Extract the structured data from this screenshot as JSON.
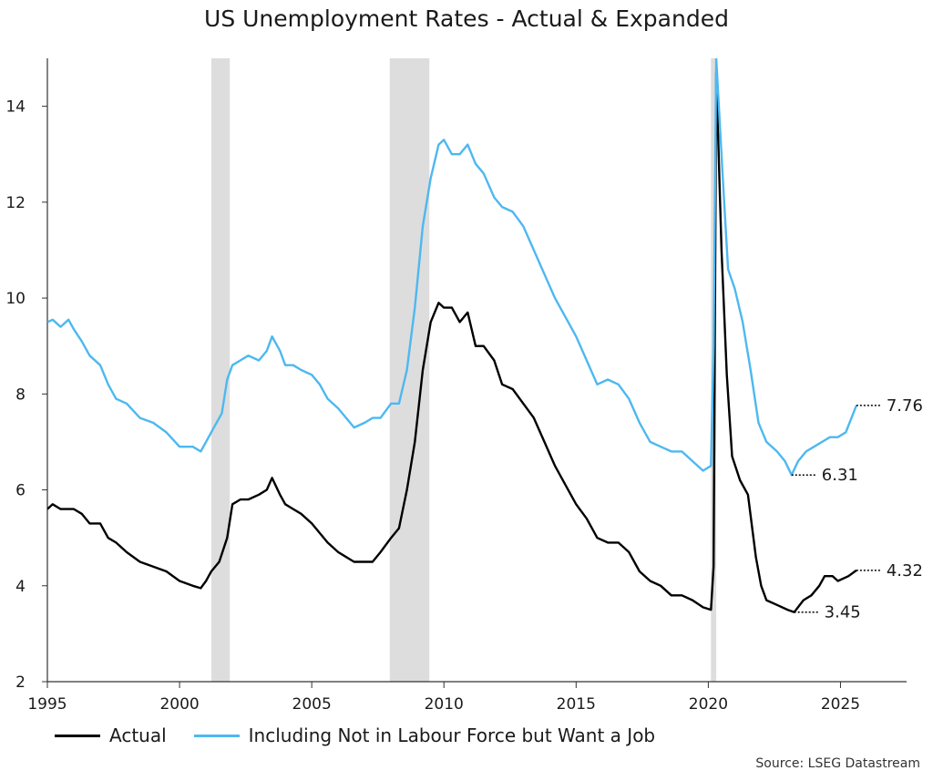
{
  "title": "US Unemployment Rates - Actual & Expanded",
  "source": "Source: LSEG Datastream",
  "colors": {
    "actual": "#000000",
    "expanded": "#4db8f0",
    "recession": "#dddddd",
    "axis": "#333333"
  },
  "chart_data": {
    "type": "line",
    "title": "US Unemployment Rates - Actual & Expanded",
    "xlabel": "",
    "ylabel": "",
    "xlim": [
      1995,
      2027.5
    ],
    "ylim": [
      2,
      15
    ],
    "x_ticks": [
      1995,
      2000,
      2005,
      2010,
      2015,
      2020,
      2025
    ],
    "y_ticks": [
      2,
      4,
      6,
      8,
      10,
      12,
      14
    ],
    "grid": false,
    "legend_position": "bottom-left",
    "recessions": [
      [
        2001.2,
        2001.9
      ],
      [
        2007.95,
        2009.45
      ],
      [
        2020.1,
        2020.3
      ]
    ],
    "series": [
      {
        "name": "Actual",
        "color": "#000000",
        "points": [
          [
            1995.0,
            5.6
          ],
          [
            1995.2,
            5.7
          ],
          [
            1995.5,
            5.6
          ],
          [
            1995.8,
            5.6
          ],
          [
            1996.0,
            5.6
          ],
          [
            1996.3,
            5.5
          ],
          [
            1996.6,
            5.3
          ],
          [
            1997.0,
            5.3
          ],
          [
            1997.3,
            5.0
          ],
          [
            1997.6,
            4.9
          ],
          [
            1998.0,
            4.7
          ],
          [
            1998.5,
            4.5
          ],
          [
            1999.0,
            4.4
          ],
          [
            1999.5,
            4.3
          ],
          [
            2000.0,
            4.1
          ],
          [
            2000.5,
            4.0
          ],
          [
            2000.8,
            3.95
          ],
          [
            2001.0,
            4.1
          ],
          [
            2001.2,
            4.3
          ],
          [
            2001.5,
            4.5
          ],
          [
            2001.8,
            5.0
          ],
          [
            2002.0,
            5.7
          ],
          [
            2002.3,
            5.8
          ],
          [
            2002.6,
            5.8
          ],
          [
            2003.0,
            5.9
          ],
          [
            2003.3,
            6.0
          ],
          [
            2003.5,
            6.25
          ],
          [
            2003.8,
            5.9
          ],
          [
            2004.0,
            5.7
          ],
          [
            2004.3,
            5.6
          ],
          [
            2004.6,
            5.5
          ],
          [
            2005.0,
            5.3
          ],
          [
            2005.3,
            5.1
          ],
          [
            2005.6,
            4.9
          ],
          [
            2006.0,
            4.7
          ],
          [
            2006.3,
            4.6
          ],
          [
            2006.6,
            4.5
          ],
          [
            2007.0,
            4.5
          ],
          [
            2007.3,
            4.5
          ],
          [
            2007.6,
            4.7
          ],
          [
            2008.0,
            5.0
          ],
          [
            2008.3,
            5.2
          ],
          [
            2008.6,
            6.0
          ],
          [
            2008.9,
            7.0
          ],
          [
            2009.2,
            8.5
          ],
          [
            2009.5,
            9.5
          ],
          [
            2009.8,
            9.9
          ],
          [
            2010.0,
            9.8
          ],
          [
            2010.3,
            9.8
          ],
          [
            2010.6,
            9.5
          ],
          [
            2010.9,
            9.7
          ],
          [
            2011.2,
            9.0
          ],
          [
            2011.5,
            9.0
          ],
          [
            2011.9,
            8.7
          ],
          [
            2012.2,
            8.2
          ],
          [
            2012.6,
            8.1
          ],
          [
            2013.0,
            7.8
          ],
          [
            2013.4,
            7.5
          ],
          [
            2013.8,
            7.0
          ],
          [
            2014.2,
            6.5
          ],
          [
            2014.6,
            6.1
          ],
          [
            2015.0,
            5.7
          ],
          [
            2015.4,
            5.4
          ],
          [
            2015.8,
            5.0
          ],
          [
            2016.2,
            4.9
          ],
          [
            2016.6,
            4.9
          ],
          [
            2017.0,
            4.7
          ],
          [
            2017.4,
            4.3
          ],
          [
            2017.8,
            4.1
          ],
          [
            2018.2,
            4.0
          ],
          [
            2018.6,
            3.8
          ],
          [
            2019.0,
            3.8
          ],
          [
            2019.4,
            3.7
          ],
          [
            2019.8,
            3.55
          ],
          [
            2020.1,
            3.5
          ],
          [
            2020.2,
            4.4
          ],
          [
            2020.3,
            14.7
          ],
          [
            2020.5,
            11.0
          ],
          [
            2020.7,
            8.4
          ],
          [
            2020.9,
            6.7
          ],
          [
            2021.2,
            6.2
          ],
          [
            2021.5,
            5.9
          ],
          [
            2021.8,
            4.6
          ],
          [
            2022.0,
            4.0
          ],
          [
            2022.2,
            3.7
          ],
          [
            2022.6,
            3.6
          ],
          [
            2023.0,
            3.5
          ],
          [
            2023.25,
            3.45
          ],
          [
            2023.6,
            3.7
          ],
          [
            2023.9,
            3.8
          ],
          [
            2024.2,
            4.0
          ],
          [
            2024.4,
            4.2
          ],
          [
            2024.7,
            4.2
          ],
          [
            2024.9,
            4.1
          ],
          [
            2025.3,
            4.2
          ],
          [
            2025.6,
            4.32
          ]
        ]
      },
      {
        "name": "Including Not in Labour Force but Want a Job",
        "color": "#4db8f0",
        "points": [
          [
            1995.0,
            9.5
          ],
          [
            1995.2,
            9.55
          ],
          [
            1995.5,
            9.4
          ],
          [
            1995.8,
            9.55
          ],
          [
            1996.0,
            9.35
          ],
          [
            1996.3,
            9.1
          ],
          [
            1996.6,
            8.8
          ],
          [
            1997.0,
            8.6
          ],
          [
            1997.3,
            8.2
          ],
          [
            1997.6,
            7.9
          ],
          [
            1998.0,
            7.8
          ],
          [
            1998.5,
            7.5
          ],
          [
            1999.0,
            7.4
          ],
          [
            1999.5,
            7.2
          ],
          [
            2000.0,
            6.9
          ],
          [
            2000.5,
            6.9
          ],
          [
            2000.8,
            6.8
          ],
          [
            2001.0,
            7.0
          ],
          [
            2001.3,
            7.3
          ],
          [
            2001.6,
            7.6
          ],
          [
            2001.8,
            8.3
          ],
          [
            2002.0,
            8.6
          ],
          [
            2002.3,
            8.7
          ],
          [
            2002.6,
            8.8
          ],
          [
            2003.0,
            8.7
          ],
          [
            2003.3,
            8.9
          ],
          [
            2003.5,
            9.2
          ],
          [
            2003.8,
            8.9
          ],
          [
            2004.0,
            8.6
          ],
          [
            2004.3,
            8.6
          ],
          [
            2004.6,
            8.5
          ],
          [
            2005.0,
            8.4
          ],
          [
            2005.3,
            8.2
          ],
          [
            2005.6,
            7.9
          ],
          [
            2006.0,
            7.7
          ],
          [
            2006.3,
            7.5
          ],
          [
            2006.6,
            7.3
          ],
          [
            2007.0,
            7.4
          ],
          [
            2007.3,
            7.5
          ],
          [
            2007.6,
            7.5
          ],
          [
            2008.0,
            7.8
          ],
          [
            2008.3,
            7.8
          ],
          [
            2008.6,
            8.5
          ],
          [
            2008.9,
            9.8
          ],
          [
            2009.2,
            11.5
          ],
          [
            2009.5,
            12.5
          ],
          [
            2009.8,
            13.2
          ],
          [
            2010.0,
            13.3
          ],
          [
            2010.3,
            13.0
          ],
          [
            2010.6,
            13.0
          ],
          [
            2010.9,
            13.2
          ],
          [
            2011.2,
            12.8
          ],
          [
            2011.5,
            12.6
          ],
          [
            2011.9,
            12.1
          ],
          [
            2012.2,
            11.9
          ],
          [
            2012.6,
            11.8
          ],
          [
            2013.0,
            11.5
          ],
          [
            2013.4,
            11.0
          ],
          [
            2013.8,
            10.5
          ],
          [
            2014.2,
            10.0
          ],
          [
            2014.6,
            9.6
          ],
          [
            2015.0,
            9.2
          ],
          [
            2015.4,
            8.7
          ],
          [
            2015.8,
            8.2
          ],
          [
            2016.2,
            8.3
          ],
          [
            2016.6,
            8.2
          ],
          [
            2017.0,
            7.9
          ],
          [
            2017.4,
            7.4
          ],
          [
            2017.8,
            7.0
          ],
          [
            2018.2,
            6.9
          ],
          [
            2018.6,
            6.8
          ],
          [
            2019.0,
            6.8
          ],
          [
            2019.4,
            6.6
          ],
          [
            2019.8,
            6.4
          ],
          [
            2020.1,
            6.5
          ],
          [
            2020.2,
            9.0
          ],
          [
            2020.3,
            15.0
          ],
          [
            2020.55,
            12.5
          ],
          [
            2020.75,
            10.6
          ],
          [
            2021.0,
            10.2
          ],
          [
            2021.3,
            9.5
          ],
          [
            2021.6,
            8.5
          ],
          [
            2021.9,
            7.4
          ],
          [
            2022.2,
            7.0
          ],
          [
            2022.6,
            6.8
          ],
          [
            2022.9,
            6.6
          ],
          [
            2023.15,
            6.31
          ],
          [
            2023.4,
            6.6
          ],
          [
            2023.7,
            6.8
          ],
          [
            2024.0,
            6.9
          ],
          [
            2024.3,
            7.0
          ],
          [
            2024.6,
            7.1
          ],
          [
            2024.9,
            7.1
          ],
          [
            2025.2,
            7.2
          ],
          [
            2025.6,
            7.76
          ]
        ]
      }
    ],
    "end_labels": [
      {
        "value": 7.76,
        "text": "7.76",
        "x_start": 2025.6
      },
      {
        "value": 6.31,
        "text": "6.31",
        "x_start": 2023.15
      },
      {
        "value": 4.32,
        "text": "4.32",
        "x_start": 2025.6
      },
      {
        "value": 3.45,
        "text": "3.45",
        "x_start": 2023.25
      }
    ]
  },
  "legend": [
    {
      "label": "Actual",
      "color": "#000000"
    },
    {
      "label": "Including Not in Labour Force but Want a Job",
      "color": "#4db8f0"
    }
  ]
}
